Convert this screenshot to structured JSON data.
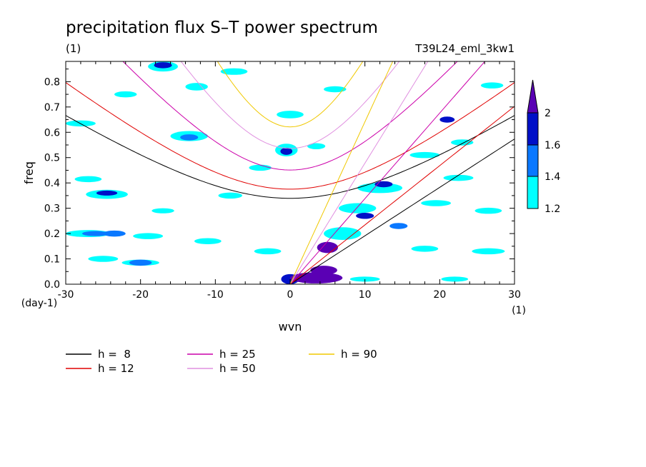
{
  "chart_data": {
    "type": "heatmap",
    "title": "precipitation flux S–T power spectrum",
    "subtitle_left": "(1)",
    "subtitle_right": "T39L24_eml_3kw1",
    "xlabel": "wvn",
    "ylabel": "freq",
    "x_unit": "(1)",
    "y_unit": "(day-1)",
    "xlim": [
      -30,
      30
    ],
    "ylim": [
      0,
      0.88
    ],
    "x_ticks": [
      "-30",
      "-20",
      "-10",
      "0",
      "10",
      "20",
      "30"
    ],
    "y_ticks": [
      "0.0",
      "0.1",
      "0.2",
      "0.3",
      "0.4",
      "0.5",
      "0.6",
      "0.7",
      "0.8"
    ],
    "colorbar": {
      "levels": [
        "1.2",
        "1.4",
        "1.6",
        "2"
      ],
      "colors": [
        "#00ffff",
        "#0a78ff",
        "#0010c8",
        "#5a00b4"
      ]
    },
    "contour_blobs": [
      {
        "x": 3.5,
        "y": 0.025,
        "rx": 3.5,
        "ry": 0.022,
        "level": 3
      },
      {
        "x": 4.5,
        "y": 0.055,
        "rx": 1.8,
        "ry": 0.018,
        "level": 3
      },
      {
        "x": 5,
        "y": 0.145,
        "rx": 1.4,
        "ry": 0.022,
        "level": 3
      },
      {
        "x": 0,
        "y": 0.02,
        "rx": 1.2,
        "ry": 0.02,
        "level": 2
      },
      {
        "x": -24.5,
        "y": 0.36,
        "rx": 1.4,
        "ry": 0.01,
        "level": 2
      },
      {
        "x": -26,
        "y": 0.2,
        "rx": 1.8,
        "ry": 0.01,
        "level": 1
      },
      {
        "x": -0.5,
        "y": 0.525,
        "rx": 0.8,
        "ry": 0.014,
        "level": 2
      },
      {
        "x": -17,
        "y": 0.865,
        "rx": 1.2,
        "ry": 0.012,
        "level": 2
      },
      {
        "x": 10,
        "y": 0.27,
        "rx": 1.2,
        "ry": 0.012,
        "level": 2
      },
      {
        "x": 12.5,
        "y": 0.395,
        "rx": 1.2,
        "ry": 0.012,
        "level": 2
      },
      {
        "x": 21,
        "y": 0.65,
        "rx": 1.0,
        "ry": 0.012,
        "level": 2
      },
      {
        "x": -20,
        "y": 0.085,
        "rx": 1.5,
        "ry": 0.012,
        "level": 1
      },
      {
        "x": -23.5,
        "y": 0.2,
        "rx": 1.5,
        "ry": 0.012,
        "level": 1
      },
      {
        "x": -13.5,
        "y": 0.58,
        "rx": 1.2,
        "ry": 0.012,
        "level": 1
      },
      {
        "x": 14.5,
        "y": 0.23,
        "rx": 1.2,
        "ry": 0.012,
        "level": 1
      },
      {
        "x": 7,
        "y": 0.2,
        "rx": 2.5,
        "ry": 0.025,
        "level": 0
      },
      {
        "x": 9,
        "y": 0.3,
        "rx": 2.5,
        "ry": 0.02,
        "level": 0
      },
      {
        "x": 12,
        "y": 0.38,
        "rx": 3,
        "ry": 0.02,
        "level": 0
      },
      {
        "x": 18,
        "y": 0.51,
        "rx": 2,
        "ry": 0.012,
        "level": 0
      },
      {
        "x": -24.5,
        "y": 0.355,
        "rx": 2.8,
        "ry": 0.018,
        "level": 0
      },
      {
        "x": -27,
        "y": 0.2,
        "rx": 3,
        "ry": 0.014,
        "level": 0
      },
      {
        "x": -17,
        "y": 0.86,
        "rx": 2,
        "ry": 0.02,
        "level": 0
      },
      {
        "x": -13.5,
        "y": 0.585,
        "rx": 2.5,
        "ry": 0.02,
        "level": 0
      },
      {
        "x": -0.5,
        "y": 0.53,
        "rx": 1.5,
        "ry": 0.025,
        "level": 0
      },
      {
        "x": 0,
        "y": 0.67,
        "rx": 1.8,
        "ry": 0.015,
        "level": 0
      },
      {
        "x": -12.5,
        "y": 0.78,
        "rx": 1.5,
        "ry": 0.015,
        "level": 0
      },
      {
        "x": -7.5,
        "y": 0.84,
        "rx": 1.8,
        "ry": 0.013,
        "level": 0
      },
      {
        "x": -27,
        "y": 0.415,
        "rx": 1.8,
        "ry": 0.012,
        "level": 0
      },
      {
        "x": -28,
        "y": 0.635,
        "rx": 2,
        "ry": 0.012,
        "level": 0
      },
      {
        "x": -22,
        "y": 0.75,
        "rx": 1.5,
        "ry": 0.012,
        "level": 0
      },
      {
        "x": -19,
        "y": 0.19,
        "rx": 2,
        "ry": 0.012,
        "level": 0
      },
      {
        "x": -20,
        "y": 0.085,
        "rx": 2.5,
        "ry": 0.012,
        "level": 0
      },
      {
        "x": -11,
        "y": 0.17,
        "rx": 1.8,
        "ry": 0.012,
        "level": 0
      },
      {
        "x": -3,
        "y": 0.13,
        "rx": 1.8,
        "ry": 0.012,
        "level": 0
      },
      {
        "x": -8,
        "y": 0.35,
        "rx": 1.6,
        "ry": 0.012,
        "level": 0
      },
      {
        "x": -4,
        "y": 0.46,
        "rx": 1.5,
        "ry": 0.012,
        "level": 0
      },
      {
        "x": 6,
        "y": 0.77,
        "rx": 1.5,
        "ry": 0.012,
        "level": 0
      },
      {
        "x": 19.5,
        "y": 0.32,
        "rx": 2,
        "ry": 0.012,
        "level": 0
      },
      {
        "x": 22.5,
        "y": 0.42,
        "rx": 2,
        "ry": 0.012,
        "level": 0
      },
      {
        "x": 26.5,
        "y": 0.13,
        "rx": 2.2,
        "ry": 0.012,
        "level": 0
      },
      {
        "x": 18,
        "y": 0.14,
        "rx": 1.8,
        "ry": 0.012,
        "level": 0
      },
      {
        "x": 22,
        "y": 0.02,
        "rx": 1.8,
        "ry": 0.01,
        "level": 0
      },
      {
        "x": 26.5,
        "y": 0.29,
        "rx": 1.8,
        "ry": 0.012,
        "level": 0
      },
      {
        "x": 23,
        "y": 0.56,
        "rx": 1.5,
        "ry": 0.012,
        "level": 0
      },
      {
        "x": 10,
        "y": 0.02,
        "rx": 2,
        "ry": 0.01,
        "level": 0
      },
      {
        "x": -25,
        "y": 0.1,
        "rx": 2,
        "ry": 0.012,
        "level": 0
      },
      {
        "x": -17,
        "y": 0.29,
        "rx": 1.5,
        "ry": 0.01,
        "level": 0
      },
      {
        "x": 3.5,
        "y": 0.545,
        "rx": 1.2,
        "ry": 0.012,
        "level": 0
      },
      {
        "x": 27,
        "y": 0.785,
        "rx": 1.5,
        "ry": 0.012,
        "level": 0
      }
    ],
    "series": [
      {
        "name": "h =  8",
        "h": 8,
        "color": "#000000"
      },
      {
        "name": "h = 12",
        "h": 12,
        "color": "#e00000"
      },
      {
        "name": "h = 25",
        "h": 25,
        "color": "#cc00aa"
      },
      {
        "name": "h = 50",
        "h": 50,
        "color": "#e090e0"
      },
      {
        "name": "h = 90",
        "h": 90,
        "color": "#f0c800"
      }
    ]
  }
}
